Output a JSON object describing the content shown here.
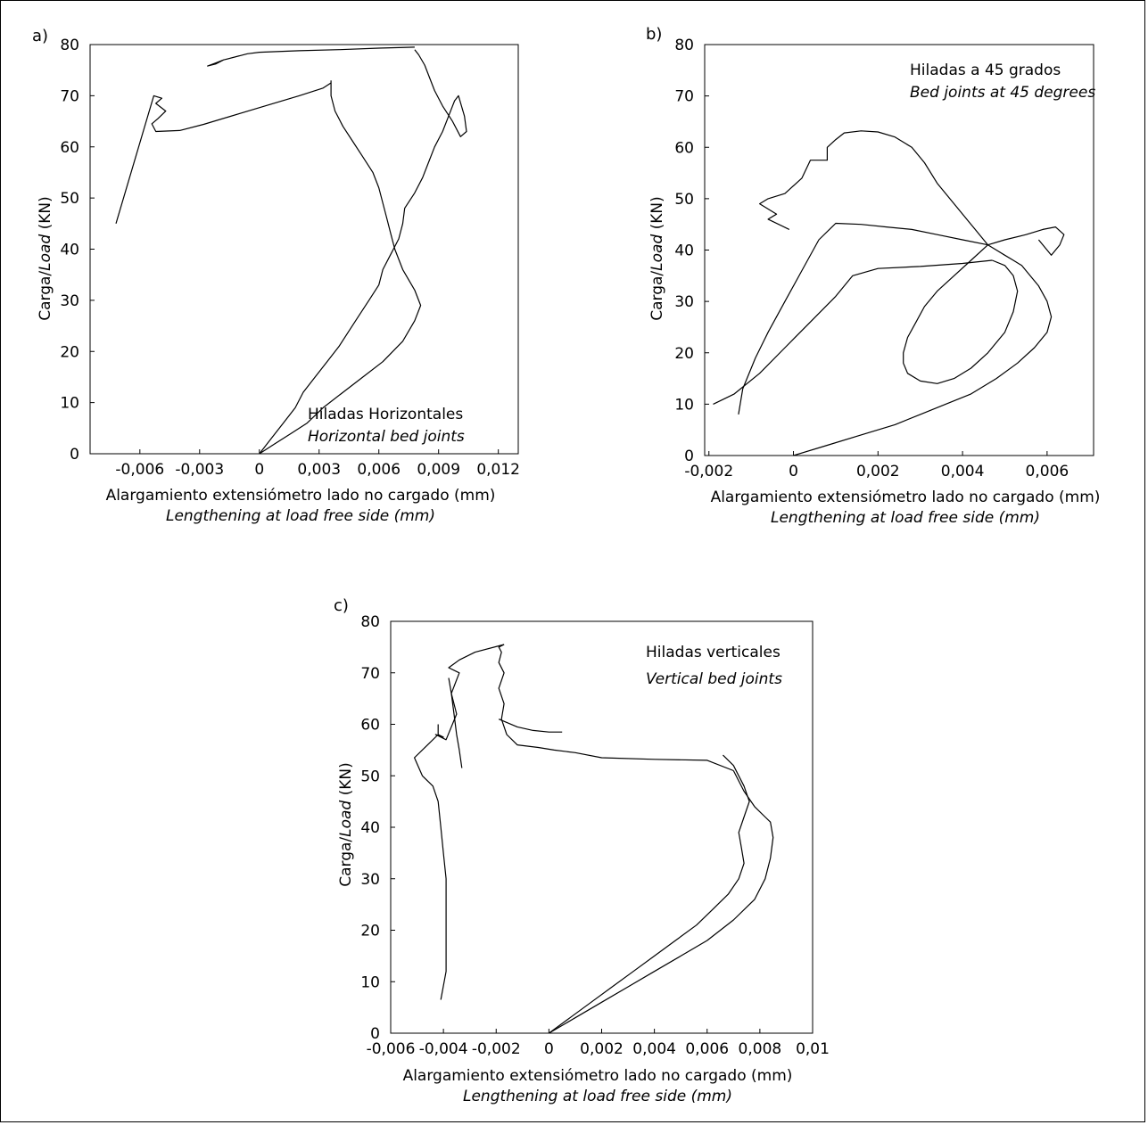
{
  "figure": {
    "background": "#ffffff",
    "line_color": "#000000"
  },
  "chart_data": [
    {
      "type": "line",
      "panel_label": "a)",
      "annotation_es": "Hiladas Horizontales",
      "annotation_en": "Horizontal bed joints",
      "xlabel_es": "Alargamiento extensiómetro lado no cargado (mm)",
      "xlabel_en": "Lengthening at load free side (mm)",
      "ylabel_es": "Carga/",
      "ylabel_en": "Load",
      "ylabel_unit": " (KN)",
      "xlim": [
        -0.0085,
        0.013
      ],
      "ylim": [
        0,
        80
      ],
      "xticks": [
        -0.006,
        -0.003,
        0,
        0.003,
        0.006,
        0.009,
        0.012
      ],
      "xtick_labels": [
        "-0,006",
        "-0,003",
        "0",
        "0,003",
        "0,006",
        "0,009",
        "0,012"
      ],
      "yticks": [
        0,
        10,
        20,
        30,
        40,
        50,
        60,
        70,
        80
      ],
      "ytick_labels": [
        "0",
        "10",
        "20",
        "30",
        "40",
        "50",
        "60",
        "70",
        "80"
      ],
      "grid": false,
      "series": [
        {
          "x": [
            0,
            0.0006,
            0.0012,
            0.0018,
            0.0022,
            0.0028,
            0.0034,
            0.004,
            0.0045,
            0.005,
            0.0055,
            0.006,
            0.0062,
            0.0066,
            0.007,
            0.0072,
            0.0073,
            0.0078,
            0.0082,
            0.0085,
            0.0088,
            0.0092,
            0.0095,
            0.0098,
            0.01,
            0.0103,
            0.0104,
            0.0101,
            0.0097,
            0.0092,
            0.0088,
            0.0085,
            0.0083,
            0.008,
            0.0078
          ],
          "y": [
            0,
            3,
            6,
            9,
            12,
            15,
            18,
            21,
            24,
            27,
            30,
            33,
            36,
            39,
            42,
            45,
            48,
            51,
            54,
            57,
            60,
            63,
            66,
            69,
            70,
            66,
            63,
            62,
            65,
            68,
            71,
            74,
            76,
            78,
            79
          ]
        },
        {
          "x": [
            0,
            0.0008,
            0.0016,
            0.0024,
            0.0032,
            0.0042,
            0.0052,
            0.0062,
            0.0072,
            0.0078,
            0.0081,
            0.0078,
            0.0072,
            0.0068,
            0.0066,
            0.0064,
            0.0062,
            0.006,
            0.0057,
            0.0052,
            0.0047,
            0.0042,
            0.0038,
            0.0036,
            0.0036,
            0.0036
          ],
          "y": [
            0,
            2,
            4,
            6,
            9,
            12,
            15,
            18,
            22,
            26,
            29,
            32,
            36,
            40,
            43,
            46,
            49,
            52,
            55,
            58,
            61,
            64,
            67,
            70,
            72,
            73
          ]
        },
        {
          "x": [
            0.0036,
            0.0032,
            0.002,
            0.0008,
            -0.0004,
            -0.0016,
            -0.0028,
            -0.004,
            -0.0052,
            -0.0054,
            -0.0051,
            -0.0047,
            -0.0052,
            -0.0049,
            -0.0053,
            -0.0072
          ],
          "y": [
            72.5,
            71.5,
            70,
            68.6,
            67.2,
            65.8,
            64.4,
            63.2,
            63,
            64.5,
            65.5,
            67,
            68.5,
            69.5,
            70,
            45
          ]
        },
        {
          "x": [
            0.0078,
            0.006,
            0.004,
            0.002,
            0,
            -0.0006,
            -0.0012,
            -0.0018,
            -0.0022,
            -0.0026,
            -0.0022,
            -0.0018,
            -0.001
          ],
          "y": [
            79.5,
            79.3,
            79,
            78.8,
            78.5,
            78.2,
            77.6,
            77,
            76.4,
            75.8,
            76.2,
            77,
            77.8
          ]
        }
      ]
    },
    {
      "type": "line",
      "panel_label": "b)",
      "annotation_es": "Hiladas a 45 grados",
      "annotation_en": "Bed joints at 45 degrees",
      "xlabel_es": "Alargamiento extensiómetro lado no cargado (mm)",
      "xlabel_en": "Lengthening at load free side (mm)",
      "ylabel_es": "Carga/",
      "ylabel_en": "Load",
      "ylabel_unit": " (KN)",
      "xlim": [
        -0.0021,
        0.0071
      ],
      "ylim": [
        0,
        80
      ],
      "xticks": [
        -0.002,
        0,
        0.002,
        0.004,
        0.006
      ],
      "xtick_labels": [
        "-0,002",
        "0",
        "0,002",
        "0,004",
        "0,006"
      ],
      "yticks": [
        0,
        10,
        20,
        30,
        40,
        50,
        60,
        70,
        80
      ],
      "ytick_labels": [
        "0",
        "10",
        "20",
        "30",
        "40",
        "50",
        "60",
        "70",
        "80"
      ],
      "grid": false,
      "series": [
        {
          "x": [
            0,
            0.0008,
            0.0016,
            0.0024,
            0.003,
            0.0036,
            0.0042,
            0.0048,
            0.0053,
            0.0057,
            0.006,
            0.0061,
            0.006,
            0.0058,
            0.0056,
            0.0054,
            0.0052,
            0.005,
            0.0048,
            0.0046
          ],
          "y": [
            0,
            2,
            4,
            6,
            8,
            10,
            12,
            15,
            18,
            21,
            24,
            27,
            30,
            33,
            35,
            37,
            38,
            39,
            40,
            41
          ]
        },
        {
          "x": [
            0.0046,
            0.0042,
            0.0038,
            0.0034,
            0.0031,
            0.0029,
            0.0027,
            0.0026,
            0.0026,
            0.0027,
            0.003,
            0.0034,
            0.0038,
            0.0042,
            0.0046,
            0.005,
            0.0052,
            0.0053,
            0.0052,
            0.005,
            0.0047
          ],
          "y": [
            41,
            38,
            35,
            32,
            29,
            26,
            23,
            20,
            18,
            16,
            14.5,
            14,
            15,
            17,
            20,
            24,
            28,
            32,
            35,
            37,
            38
          ]
        },
        {
          "x": [
            0.0047,
            0.004,
            0.003,
            0.002,
            0.0014,
            0.001,
            0.0004,
            -0.0002,
            -0.0008,
            -0.0014,
            -0.0019
          ],
          "y": [
            38,
            37.4,
            36.8,
            36.4,
            35,
            31,
            26,
            21,
            16,
            12,
            10
          ]
        },
        {
          "x": [
            0.0046,
            0.004,
            0.0034,
            0.0028,
            0.0022,
            0.0016,
            0.001,
            0.0006,
            0.0002,
            -0.0002,
            -0.0006,
            -0.0009,
            -0.0012,
            -0.0013
          ],
          "y": [
            41,
            42,
            43,
            44,
            44.5,
            45,
            45.2,
            42,
            36,
            30,
            24,
            19,
            13,
            8
          ]
        },
        {
          "x": [
            0.0046,
            0.0042,
            0.0038,
            0.0034,
            0.0031,
            0.0028,
            0.0024,
            0.002,
            0.0016,
            0.0012,
            0.001,
            0.0008,
            0.0008,
            0.0004,
            0.0002,
            -0.0002,
            -0.0006,
            -0.0008,
            -0.0004,
            -0.0006,
            -0.0001
          ],
          "y": [
            41,
            45,
            49,
            53,
            57,
            60,
            62,
            63,
            63.2,
            62.8,
            61.5,
            60,
            57.5,
            57.5,
            54,
            51,
            50,
            49,
            47,
            46,
            44
          ]
        },
        {
          "x": [
            0.0046,
            0.005,
            0.0055,
            0.0059,
            0.0062,
            0.0064,
            0.0063,
            0.0061,
            0.0058
          ],
          "y": [
            41,
            42,
            43,
            44,
            44.5,
            43,
            41,
            39,
            42
          ]
        }
      ]
    },
    {
      "type": "line",
      "panel_label": "c)",
      "annotation_es": "Hiladas verticales",
      "annotation_en": "Vertical bed joints",
      "xlabel_es": "Alargamiento extensiómetro lado no cargado (mm)",
      "xlabel_en": "Lengthening at load free side (mm)",
      "ylabel_es": "Carga/",
      "ylabel_en": "Load",
      "ylabel_unit": " (KN)",
      "xlim": [
        -0.006,
        0.01
      ],
      "ylim": [
        0,
        80
      ],
      "xticks": [
        -0.006,
        -0.004,
        -0.002,
        0,
        0.002,
        0.004,
        0.006,
        0.008,
        0.01
      ],
      "xtick_labels": [
        "-0,006",
        "-0,004",
        "-0,002",
        "0",
        "0,002",
        "0,004",
        "0,006",
        "0,008",
        "0,01"
      ],
      "yticks": [
        0,
        10,
        20,
        30,
        40,
        50,
        60,
        70,
        80
      ],
      "ytick_labels": [
        "0",
        "10",
        "20",
        "30",
        "40",
        "50",
        "60",
        "70",
        "80"
      ],
      "grid": false,
      "series": [
        {
          "x": [
            0,
            0.0008,
            0.0016,
            0.0024,
            0.0032,
            0.004,
            0.0048,
            0.0056,
            0.0062,
            0.0068,
            0.0072,
            0.0074,
            0.0073,
            0.0072,
            0.0074,
            0.0076,
            0.0074,
            0.0072,
            0.007,
            0.0066
          ],
          "y": [
            0,
            3,
            6,
            9,
            12,
            15,
            18,
            21,
            24,
            27,
            30,
            33,
            36,
            39,
            42,
            45,
            48,
            50,
            52,
            54
          ]
        },
        {
          "x": [
            0,
            0.001,
            0.002,
            0.003,
            0.004,
            0.005,
            0.006,
            0.007,
            0.0078,
            0.0082,
            0.0084,
            0.0085,
            0.0084,
            0.0082,
            0.0078,
            0.0074,
            0.007
          ],
          "y": [
            0,
            3,
            6,
            9,
            12,
            15,
            18,
            22,
            26,
            30,
            34,
            38,
            41,
            42,
            44,
            47,
            51
          ]
        },
        {
          "x": [
            0.007,
            0.006,
            0.004,
            0.002,
            0.001,
            0.0002,
            -0.0004,
            -0.0012,
            -0.0016,
            -0.0018,
            -0.0017,
            -0.0019,
            -0.0017,
            -0.0019,
            -0.0018,
            -0.0019,
            -0.0017
          ],
          "y": [
            51,
            53,
            53.2,
            53.5,
            54.5,
            55,
            55.5,
            56,
            58,
            61,
            64,
            67,
            70,
            72,
            74,
            75,
            75.5
          ]
        },
        {
          "x": [
            -0.0017,
            -0.0028,
            -0.0034,
            -0.0038,
            -0.0034,
            -0.0037,
            -0.0035,
            -0.0039,
            -0.0043,
            -0.004,
            -0.0042,
            -0.0042
          ],
          "y": [
            75.5,
            74,
            72.5,
            71,
            70,
            66,
            62,
            57,
            58,
            57.5,
            58,
            60
          ]
        },
        {
          "x": [
            -0.0042,
            -0.0046,
            -0.0051,
            -0.0048,
            -0.0044,
            -0.0042,
            -0.0041,
            -0.004,
            -0.0039,
            -0.0039,
            -0.0039,
            -0.0039,
            -0.0041
          ],
          "y": [
            58,
            56,
            53.5,
            50,
            48,
            45,
            40,
            35,
            30,
            25,
            20,
            12,
            6.5
          ]
        },
        {
          "x": [
            -0.0038,
            -0.0037,
            -0.0036,
            -0.0035,
            -0.0034,
            -0.0033
          ],
          "y": [
            69,
            66,
            62,
            58,
            55,
            51.5
          ]
        },
        {
          "x": [
            -0.0019,
            -0.0012,
            -0.0006,
            0,
            0.0005
          ],
          "y": [
            61,
            59.5,
            58.8,
            58.5,
            58.5
          ]
        }
      ]
    }
  ]
}
